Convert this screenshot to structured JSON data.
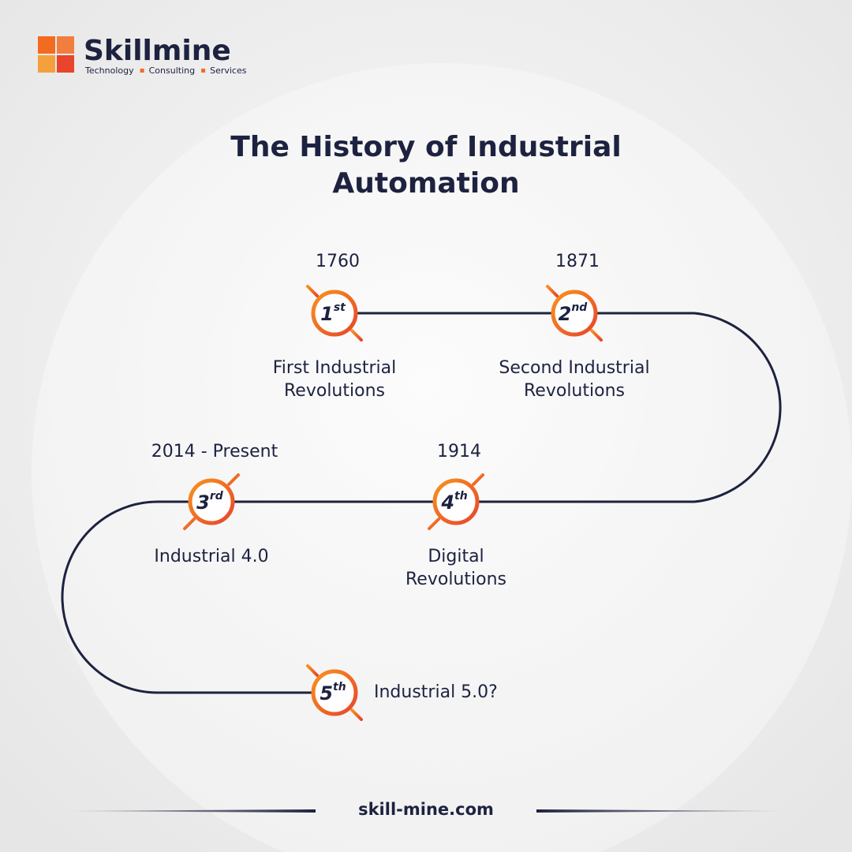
{
  "logo": {
    "name": "Skillmine",
    "tagline": [
      "Technology",
      "Consulting",
      "Services"
    ]
  },
  "title": [
    "The History of Industrial",
    "Automation"
  ],
  "milestones": [
    {
      "number": "1",
      "suffix": "st",
      "date": "1760",
      "label": [
        "First Industrial",
        "Revolutions"
      ]
    },
    {
      "number": "2",
      "suffix": "nd",
      "date": "1871",
      "label": [
        "Second Industrial",
        "Revolutions"
      ]
    },
    {
      "number": "3",
      "suffix": "rd",
      "date": "2014 - Present",
      "label": [
        "Industrial 4.0"
      ]
    },
    {
      "number": "4",
      "suffix": "th",
      "date": "1914",
      "label": [
        "Digital",
        "Revolutions"
      ]
    },
    {
      "number": "5",
      "suffix": "th",
      "label": [
        "Industrial 5.0?"
      ]
    }
  ],
  "footer": "skill-mine.com"
}
